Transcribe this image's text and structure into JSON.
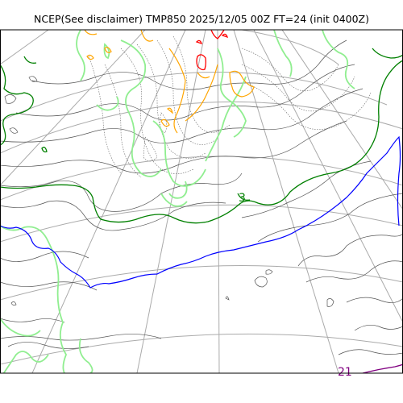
{
  "title": "NCEP(See disclaimer) TMP850 2025/12/05 00Z FT=24 (init 0400Z)",
  "contour_labels": {
    "green": "3",
    "purple": "21"
  },
  "colors": {
    "frame": "#000000",
    "graticule": "#aaaaaa",
    "pressure_contours": "#555555",
    "thickness_dotted": "#666666",
    "temp_light_green": "#90ee90",
    "temp_dark_green": "#008000",
    "temp_blue": "#0000ff",
    "temp_orange": "#ffa500",
    "temp_red": "#ff0000",
    "temp_purple": "#800080"
  }
}
